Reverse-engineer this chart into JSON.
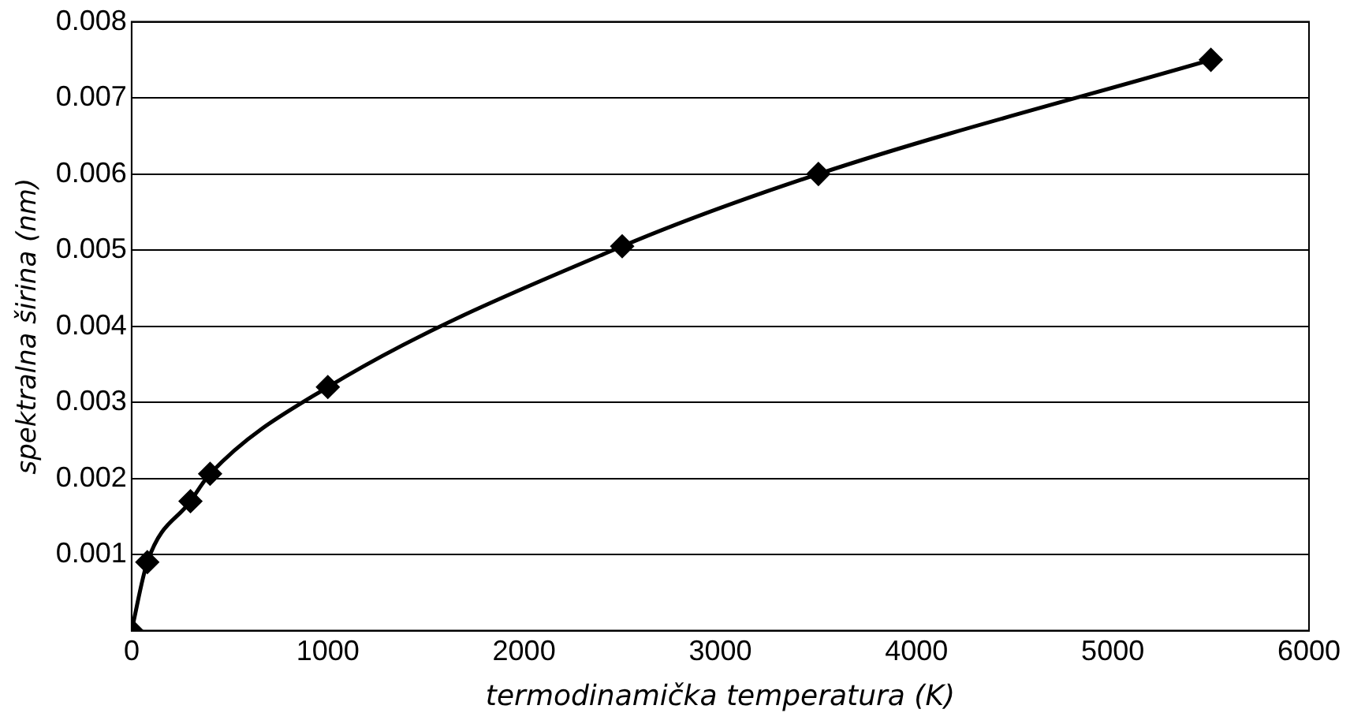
{
  "chart_data": {
    "type": "line",
    "xlabel": "termodinamička temperatura (K)",
    "ylabel": "spektralna širina (nm)",
    "x": [
      0,
      80,
      300,
      400,
      1000,
      2500,
      3500,
      5500
    ],
    "series": [
      {
        "color": "#000000",
        "values": [
          0,
          0.0009,
          0.0017,
          0.00206,
          0.0032,
          0.00505,
          0.006,
          0.0075
        ]
      }
    ],
    "xlim": [
      0,
      6000
    ],
    "xticks": [
      0,
      1000,
      2000,
      3000,
      4000,
      5000,
      6000
    ],
    "ylim": [
      0,
      0.008
    ],
    "yticks": [
      {
        "value": 0,
        "label": null
      },
      0.001,
      0.002,
      0.003,
      0.004,
      0.005,
      0.006,
      0.007,
      0.008
    ],
    "grid": "y",
    "legend": false,
    "marker": "diamond",
    "line_style": "solid"
  }
}
